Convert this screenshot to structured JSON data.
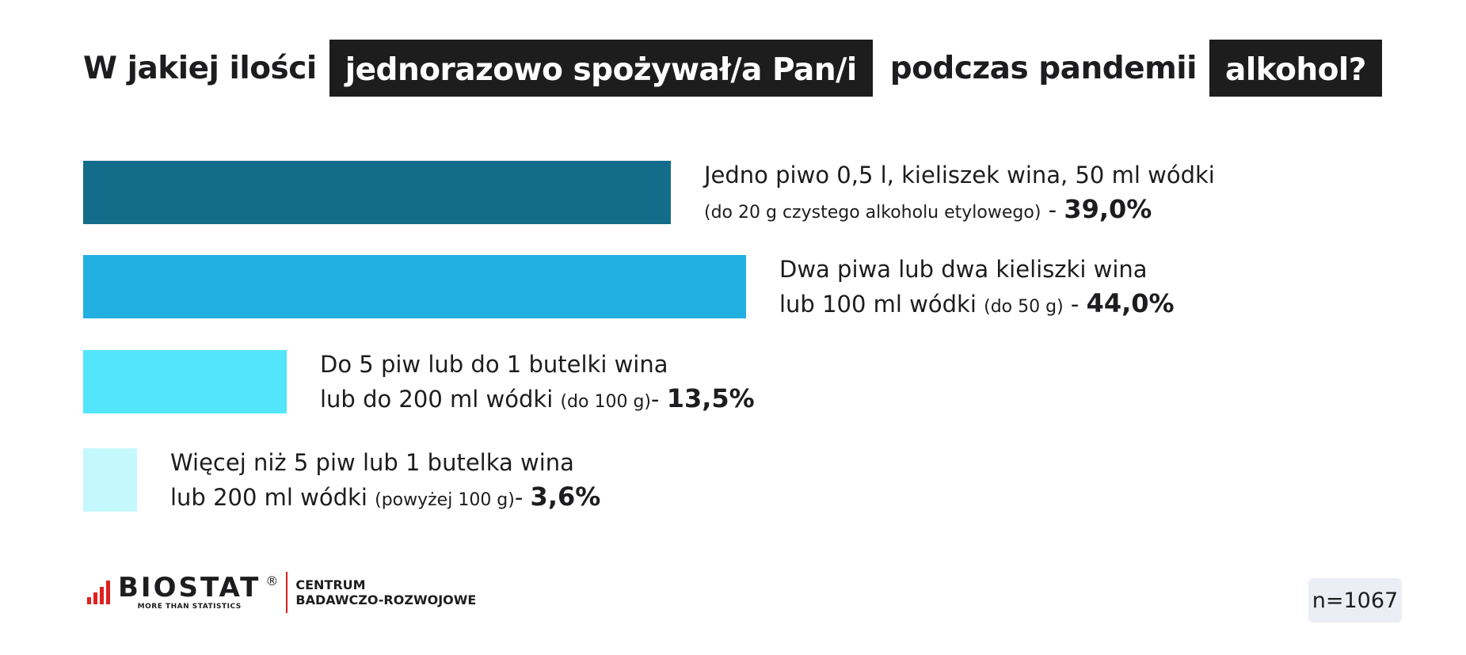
{
  "title": {
    "part1": "W jakiej ilości",
    "highlight1": "jednorazowo spożywał/a Pan/i",
    "part2": "podczas pandemii",
    "highlight2": "alkohol?"
  },
  "chart_data": {
    "type": "bar",
    "orientation": "horizontal",
    "xlim": [
      0,
      44
    ],
    "categories": [
      "Jedno piwo 0,5 l, kieliszek wina, 50 ml wódki (do 20 g czystego alkoholu etylowego)",
      "Dwa piwa lub dwa kieliszki wina lub 100 ml wódki (do 50 g)",
      "Do 5 piw lub do 1 butelki wina lub do 200 ml wódki (do 100 g)",
      "Więcej niż 5 piw lub 1 butelka wina lub 200 ml wódki (powyżej 100 g)"
    ],
    "values": [
      39.0,
      44.0,
      13.5,
      3.6
    ],
    "colors": [
      "#136d8a",
      "#22afe2",
      "#52e5fc",
      "#c5f8fc"
    ],
    "labels": [
      {
        "line1": "Jedno piwo 0,5 l, kieliszek wina, 50 ml wódki",
        "line2": "",
        "note": "(do 20 g czystego alkoholu etylowego)",
        "sep": " - ",
        "value_label": "39,0%"
      },
      {
        "line1": "Dwa piwa lub dwa kieliszki wina",
        "line2": "lub 100 ml wódki ",
        "note": "(do 50 g)",
        "sep": " - ",
        "value_label": "44,0%"
      },
      {
        "line1": "Do 5 piw lub do 1 butelki wina",
        "line2": "lub do 200 ml wódki ",
        "note": "(do 100 g)",
        "sep": "- ",
        "value_label": "13,5%"
      },
      {
        "line1": "Więcej niż 5 piw lub 1 butelka wina",
        "line2": "lub 200 ml wódki ",
        "note": "(powyżej 100 g)",
        "sep": "- ",
        "value_label": "3,6%"
      }
    ]
  },
  "footer": {
    "logo": {
      "name": "BIOSTAT",
      "reg": "®",
      "tagline": "MORE THAN STATISTICS",
      "sub_line1": "CENTRUM",
      "sub_line2": "BADAWCZO-ROZWOJOWE",
      "color": "#e02020"
    },
    "sample": "n=1067"
  }
}
